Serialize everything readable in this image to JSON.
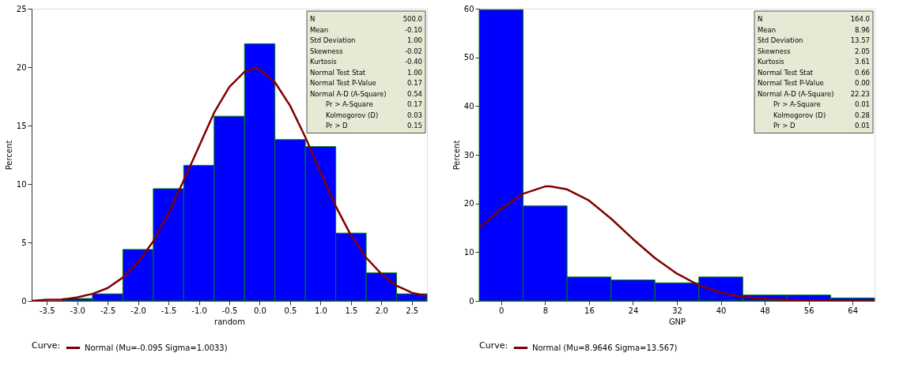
{
  "chart_data": [
    {
      "type": "histogram",
      "xlabel": "random",
      "ylabel": "Percent",
      "legend_title": "Curve:",
      "legend": "bottom",
      "grid": false,
      "bins": [
        -3.75,
        -3.25,
        -2.75,
        -2.25,
        -1.75,
        -1.25,
        -0.75,
        -0.25,
        0.25,
        0.75,
        1.25,
        1.75,
        2.25,
        2.75
      ],
      "xlim": [
        -3.75,
        2.75
      ],
      "ylim": [
        0,
        25
      ],
      "xticks": [
        -3.5,
        {
          "value": -3,
          "label": "-3.0"
        },
        -2.5,
        {
          "value": -2,
          "label": "-2.0"
        },
        -1.5,
        {
          "value": -1,
          "label": "-1.0"
        },
        -0.5,
        {
          "value": 0,
          "label": "0.0"
        },
        0.5,
        {
          "value": 1,
          "label": "1.0"
        },
        1.5,
        {
          "value": 2,
          "label": "2.0"
        },
        2.5
      ],
      "yticks": [
        0,
        5,
        10,
        15,
        20,
        25
      ],
      "series": [
        {
          "type": "histogram",
          "color": "#0000ff",
          "values": [
            0,
            0.2,
            0.6,
            4.4,
            9.6,
            11.6,
            15.8,
            22.0,
            13.8,
            13.2,
            5.8,
            2.4,
            0.6
          ]
        },
        {
          "type": "line",
          "name": "Normal (Mu=-0.095 Sigma=1.0033)",
          "color": "#800000",
          "x": [
            -3.75,
            -3.5,
            -3.25,
            -3.0,
            -2.75,
            -2.5,
            -2.25,
            -2.0,
            -1.75,
            -1.5,
            -1.25,
            -1.0,
            -0.75,
            -0.5,
            -0.25,
            -0.095,
            0,
            0.25,
            0.5,
            0.75,
            1.0,
            1.25,
            1.5,
            1.75,
            2.0,
            2.25,
            2.5,
            2.75
          ],
          "values": [
            0.0,
            0.1,
            0.1,
            0.3,
            0.6,
            1.1,
            2.0,
            3.3,
            5.1,
            7.5,
            10.3,
            13.2,
            16.1,
            18.3,
            19.6,
            19.9,
            19.8,
            18.7,
            16.7,
            14.0,
            11.0,
            8.1,
            5.6,
            3.7,
            2.3,
            1.3,
            0.7,
            0.4
          ]
        }
      ],
      "annotations": [
        "N",
        "500.0",
        "Mean",
        "-0.10",
        "Std Deviation",
        "1.00",
        "Skewness",
        "-0.02",
        "Kurtosis",
        "-0.40",
        "Normal Test Stat",
        "1.00",
        "Normal Test P-Value",
        "0.17",
        "Normal A-D (A-Square)",
        "0.54",
        "Pr > A-Square",
        "0.17",
        "Kolmogorov (D)",
        "0.03",
        "Pr > D",
        "0.15"
      ]
    },
    {
      "type": "histogram",
      "xlabel": "GNP",
      "ylabel": "Percent",
      "legend_title": "Curve:",
      "legend": "bottom",
      "grid": false,
      "bins": [
        -4,
        4,
        12,
        20,
        28,
        36,
        44,
        52,
        60,
        68
      ],
      "xlim": [
        -4,
        68
      ],
      "ylim": [
        0,
        60
      ],
      "xticks": [
        0,
        8,
        16,
        24,
        32,
        40,
        48,
        56,
        64
      ],
      "yticks": [
        0,
        10,
        20,
        30,
        40,
        50,
        60
      ],
      "series": [
        {
          "type": "histogram",
          "color": "#0000ff",
          "values": [
            59.8,
            19.5,
            4.9,
            4.3,
            3.7,
            4.9,
            1.2,
            1.2,
            0.6
          ]
        },
        {
          "type": "line",
          "name": "Normal (Mu=8.9646 Sigma=13.567)",
          "color": "#800000",
          "x": [
            -4,
            0,
            4,
            8,
            8.96,
            12,
            16,
            20,
            24,
            28,
            32,
            36,
            40,
            44,
            48,
            52,
            56,
            60,
            64,
            68
          ],
          "values": [
            14.9,
            18.9,
            22.0,
            23.5,
            23.5,
            22.9,
            20.6,
            16.9,
            12.7,
            8.8,
            5.6,
            3.2,
            1.7,
            0.8,
            0.4,
            0.2,
            0.1,
            0.0,
            0.0,
            0.0
          ]
        }
      ],
      "annotations": [
        "N",
        "164.0",
        "Mean",
        "8.96",
        "Std Deviation",
        "13.57",
        "Skewness",
        "2.05",
        "Kurtosis",
        "3.61",
        "Normal Test Stat",
        "0.66",
        "Normal Test P-Value",
        "0.00",
        "Normal A-D (A-Square)",
        "22.23",
        "Pr > A-Square",
        "0.01",
        "Kolmogorov (D)",
        "0.28",
        "Pr > D",
        "0.01"
      ]
    }
  ]
}
